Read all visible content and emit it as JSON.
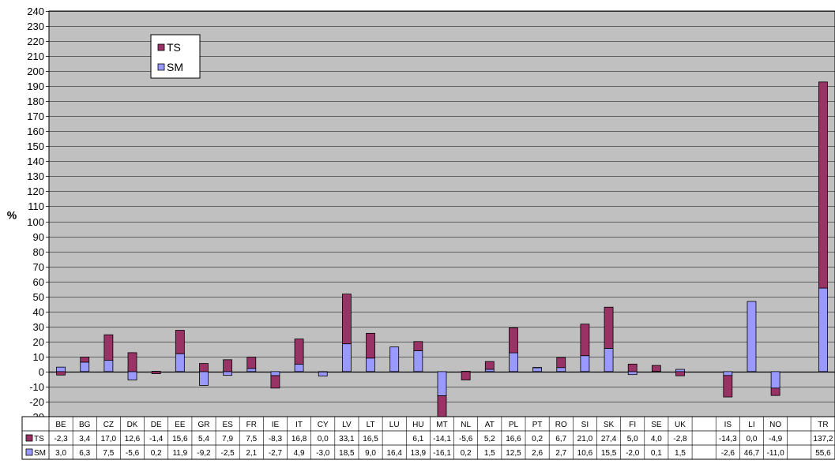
{
  "chart_data": {
    "type": "bar",
    "stacked": true,
    "ylabel": "%",
    "ylim": [
      -30,
      240
    ],
    "ytick_step": 10,
    "grid": true,
    "legend_position": "top-left",
    "background_color": "#c0c0c0",
    "categories": [
      "BE",
      "BG",
      "CZ",
      "DK",
      "DE",
      "EE",
      "GR",
      "ES",
      "FR",
      "IE",
      "IT",
      "CY",
      "LV",
      "LT",
      "LU",
      "HU",
      "MT",
      "NL",
      "AT",
      "PL",
      "PT",
      "RO",
      "SI",
      "SK",
      "FI",
      "SE",
      "UK",
      "",
      "IS",
      "LI",
      "NO",
      "",
      "TR"
    ],
    "series": [
      {
        "name": "TS",
        "color": "#993366",
        "values": [
          -2.3,
          3.4,
          17.0,
          12.6,
          -1.4,
          15.6,
          5.4,
          7.9,
          7.5,
          -8.3,
          16.8,
          0.0,
          33.1,
          16.5,
          null,
          6.1,
          -14.1,
          -5.6,
          5.2,
          16.6,
          0.2,
          6.7,
          21.0,
          27.4,
          5.0,
          4.0,
          -2.8,
          null,
          -14.3,
          0.0,
          -4.9,
          null,
          137.2
        ],
        "labels": [
          "-2,3",
          "3,4",
          "17,0",
          "12,6",
          "-1,4",
          "15,6",
          "5,4",
          "7,9",
          "7,5",
          "-8,3",
          "16,8",
          "0,0",
          "33,1",
          "16,5",
          "",
          "6,1",
          "-14,1",
          "-5,6",
          "5,2",
          "16,6",
          "0,2",
          "6,7",
          "21,0",
          "27,4",
          "5,0",
          "4,0",
          "-2,8",
          "",
          "-14,3",
          "0,0",
          "-4,9",
          "",
          "137,2"
        ]
      },
      {
        "name": "SM",
        "color": "#9999ff",
        "values": [
          3.0,
          6.3,
          7.5,
          -5.6,
          0.2,
          11.9,
          -9.2,
          -2.5,
          2.1,
          -2.7,
          4.9,
          -3.0,
          18.5,
          9.0,
          16.4,
          13.9,
          -16.1,
          0.2,
          1.5,
          12.5,
          2.6,
          2.7,
          10.6,
          15.5,
          -2.0,
          0.1,
          1.5,
          null,
          -2.6,
          46.7,
          -11.0,
          null,
          55.6
        ],
        "labels": [
          "3,0",
          "6,3",
          "7,5",
          "-5,6",
          "0,2",
          "11,9",
          "-9,2",
          "-2,5",
          "2,1",
          "-2,7",
          "4,9",
          "-3,0",
          "18,5",
          "9,0",
          "16,4",
          "13,9",
          "-16,1",
          "0,2",
          "1,5",
          "12,5",
          "2,6",
          "2,7",
          "10,6",
          "15,5",
          "-2,0",
          "0,1",
          "1,5",
          "",
          "-2,6",
          "46,7",
          "-11,0",
          "",
          "55,6"
        ]
      }
    ]
  }
}
